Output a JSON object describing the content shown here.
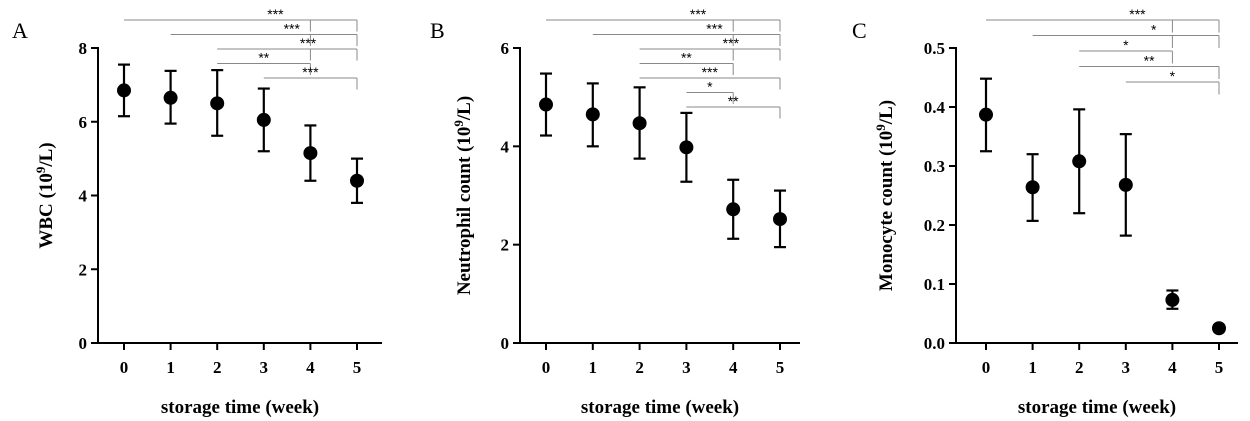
{
  "chart_data": [
    {
      "type": "scatter",
      "panel": "A",
      "xlabel": "storage time (week)",
      "ylabel_main": "WBC (10",
      "ylabel_sup": "9",
      "ylabel_end": "/L)",
      "x": [
        0,
        1,
        2,
        3,
        4,
        5
      ],
      "values": [
        6.85,
        6.65,
        6.5,
        6.05,
        5.15,
        4.4
      ],
      "err_low": [
        6.15,
        5.95,
        5.62,
        5.2,
        4.4,
        3.8
      ],
      "err_high": [
        7.55,
        7.38,
        7.4,
        6.9,
        5.9,
        5.0
      ],
      "ylim": [
        0,
        8
      ],
      "yticks": [
        0,
        2,
        4,
        6,
        8
      ],
      "ytick_labels": [
        "0",
        "2",
        "4",
        "6",
        "8"
      ],
      "xtick_labels": [
        "0",
        "1",
        "2",
        "3",
        "4",
        "5"
      ],
      "significance": [
        {
          "from": 0,
          "to": 5,
          "label": "***",
          "via": 4
        },
        {
          "from": 1,
          "to": 5,
          "label": "***",
          "via": 4
        },
        {
          "from": 2,
          "to": 5,
          "label": "***",
          "via": 4
        },
        {
          "from": 2,
          "to": 4,
          "label": "**"
        },
        {
          "from": 3,
          "to": 5,
          "label": "***"
        }
      ]
    },
    {
      "type": "scatter",
      "panel": "B",
      "xlabel": "storage time (week)",
      "ylabel_main": "Neutrophil count (10",
      "ylabel_sup": "9",
      "ylabel_end": "/L)",
      "x": [
        0,
        1,
        2,
        3,
        4,
        5
      ],
      "values": [
        4.85,
        4.65,
        4.47,
        3.98,
        2.72,
        2.52
      ],
      "err_low": [
        4.22,
        4.0,
        3.75,
        3.28,
        2.12,
        1.95
      ],
      "err_high": [
        5.48,
        5.28,
        5.2,
        4.68,
        3.32,
        3.1
      ],
      "ylim": [
        0,
        6
      ],
      "yticks": [
        0,
        2,
        4,
        6
      ],
      "ytick_labels": [
        "0",
        "2",
        "4",
        "6"
      ],
      "xtick_labels": [
        "0",
        "1",
        "2",
        "3",
        "4",
        "5"
      ],
      "significance": [
        {
          "from": 0,
          "to": 5,
          "label": "***",
          "via": 4
        },
        {
          "from": 1,
          "to": 5,
          "label": "***",
          "via": 4
        },
        {
          "from": 2,
          "to": 5,
          "label": "***",
          "via": 4
        },
        {
          "from": 2,
          "to": 4,
          "label": "**"
        },
        {
          "from": 2,
          "to": 5,
          "label": "***"
        },
        {
          "from": 3,
          "to": 4,
          "label": "*"
        },
        {
          "from": 3,
          "to": 5,
          "label": "**"
        }
      ]
    },
    {
      "type": "scatter",
      "panel": "C",
      "xlabel": "storage time (week)",
      "ylabel_main": "Monocyte count (10",
      "ylabel_sup": "9",
      "ylabel_end": "/L)",
      "x": [
        0,
        1,
        2,
        3,
        4,
        5
      ],
      "values": [
        0.387,
        0.264,
        0.308,
        0.268,
        0.073,
        0.025
      ],
      "err_low": [
        0.325,
        0.207,
        0.22,
        0.182,
        0.058,
        0.02
      ],
      "err_high": [
        0.448,
        0.32,
        0.396,
        0.354,
        0.089,
        0.03
      ],
      "ylim": [
        0,
        0.5
      ],
      "yticks": [
        0,
        0.1,
        0.2,
        0.3,
        0.4,
        0.5
      ],
      "ytick_labels": [
        "0.0",
        "0.1",
        "0.2",
        "0.3",
        "0.4",
        "0.5"
      ],
      "xtick_labels": [
        "0",
        "1",
        "2",
        "3",
        "4",
        "5"
      ],
      "significance": [
        {
          "from": 0,
          "to": 5,
          "label": "***",
          "via": 4
        },
        {
          "from": 1,
          "to": 5,
          "label": "*",
          "via": 4
        },
        {
          "from": 2,
          "to": 4,
          "label": "*"
        },
        {
          "from": 2,
          "to": 5,
          "label": "**"
        },
        {
          "from": 3,
          "to": 5,
          "label": "*"
        }
      ]
    }
  ],
  "panels": [
    {
      "letter": "A"
    },
    {
      "letter": "B"
    },
    {
      "letter": "C"
    }
  ]
}
